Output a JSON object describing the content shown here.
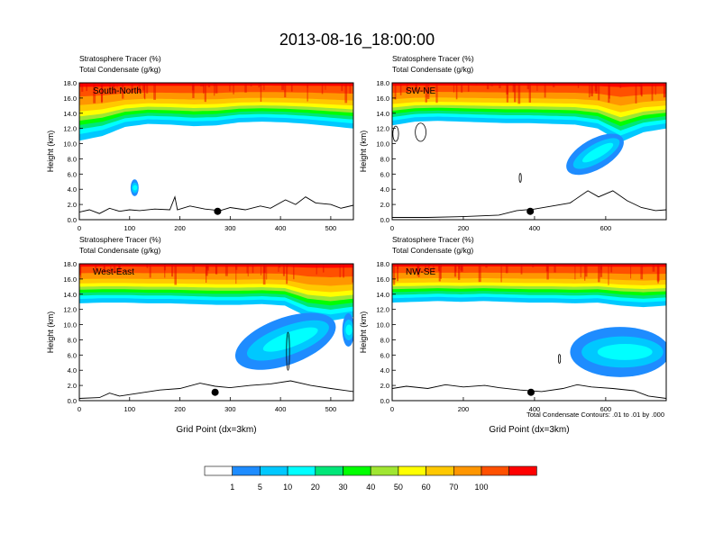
{
  "figure": {
    "title": "2013-08-16_18:00:00",
    "footnote": "Total Condensate Contours: .01 to .01 by .000"
  },
  "colors": {
    "levels": [
      "#ffffff",
      "#1e8cff",
      "#00c8ff",
      "#00ffff",
      "#00e678",
      "#00ff00",
      "#a0e632",
      "#ffff00",
      "#ffc800",
      "#ff9600",
      "#ff5000",
      "#ff0000"
    ]
  },
  "colorbar": {
    "labels": [
      "1",
      "5",
      "10",
      "20",
      "30",
      "40",
      "50",
      "60",
      "70",
      "100"
    ]
  },
  "chart_data": [
    {
      "type": "heatmap",
      "panel_label": "South-North",
      "subtitle_1": "Stratosphere Tracer   (%)",
      "subtitle_2": "Total Condensate   (g/kg)",
      "ylabel": "Height (km)",
      "xlabel": "",
      "xlim": [
        0,
        545
      ],
      "ylim": [
        0,
        18
      ],
      "xticks": [
        0,
        100,
        200,
        300,
        400,
        500
      ],
      "yticks": [
        "0.0",
        "2.0",
        "4.0",
        "6.0",
        "8.0",
        "10.0",
        "12.0",
        "14.0",
        "16.0",
        "18.0"
      ],
      "tracer_band_base_km": [
        10.4,
        11.0,
        12.2,
        12.6,
        12.5,
        12.3,
        12.4,
        12.8,
        12.9,
        12.8,
        12.6,
        12.3,
        12.0
      ],
      "condensate_blobs": [
        {
          "x": 110,
          "y": 4.2,
          "rx": 8,
          "ry": 0.5
        }
      ],
      "terrain_km": [
        [
          0,
          1.0
        ],
        [
          20,
          1.3
        ],
        [
          40,
          0.8
        ],
        [
          60,
          1.5
        ],
        [
          80,
          1.1
        ],
        [
          100,
          1.3
        ],
        [
          120,
          1.2
        ],
        [
          150,
          1.4
        ],
        [
          180,
          1.3
        ],
        [
          190,
          3.0
        ],
        [
          195,
          1.3
        ],
        [
          220,
          1.8
        ],
        [
          250,
          1.4
        ],
        [
          280,
          1.2
        ],
        [
          300,
          1.6
        ],
        [
          330,
          1.3
        ],
        [
          360,
          1.8
        ],
        [
          380,
          1.5
        ],
        [
          410,
          2.6
        ],
        [
          430,
          2.0
        ],
        [
          450,
          3.0
        ],
        [
          470,
          2.2
        ],
        [
          500,
          2.0
        ],
        [
          520,
          1.5
        ],
        [
          545,
          1.9
        ]
      ],
      "marker": [
        275,
        1.1
      ]
    },
    {
      "type": "heatmap",
      "panel_label": "SW-NE",
      "subtitle_1": "Stratosphere Tracer   (%)",
      "subtitle_2": "Total Condensate   (g/kg)",
      "ylabel": "Height (km)",
      "xlabel": "",
      "xlim": [
        0,
        770
      ],
      "ylim": [
        0,
        18
      ],
      "xticks": [
        0,
        200,
        400,
        600
      ],
      "yticks": [
        "0.0",
        "2.0",
        "4.0",
        "6.0",
        "8.0",
        "10.0",
        "12.0",
        "14.0",
        "16.0",
        "18.0"
      ],
      "tracer_band_base_km": [
        12.4,
        12.9,
        13.0,
        12.9,
        12.8,
        12.7,
        12.7,
        12.6,
        12.5,
        12.0,
        10.2,
        11.5,
        12.0
      ],
      "condensate_blobs": [
        {
          "x": 570,
          "y": 8.6,
          "rx": 90,
          "ry": 0.9,
          "angle": -30
        }
      ],
      "contour_loops": [
        {
          "x": 80,
          "y": 11.5,
          "rx": 15,
          "ry": 1.2
        },
        {
          "x": 10,
          "y": 11.3,
          "rx": 8,
          "ry": 1.0
        },
        {
          "x": 360,
          "y": 5.5,
          "rx": 3,
          "ry": 0.6
        }
      ],
      "terrain_km": [
        [
          0,
          0.3
        ],
        [
          100,
          0.3
        ],
        [
          200,
          0.4
        ],
        [
          300,
          0.6
        ],
        [
          350,
          1.2
        ],
        [
          400,
          1.4
        ],
        [
          450,
          1.8
        ],
        [
          500,
          2.2
        ],
        [
          550,
          3.8
        ],
        [
          580,
          3.0
        ],
        [
          620,
          3.8
        ],
        [
          660,
          2.5
        ],
        [
          700,
          1.6
        ],
        [
          740,
          1.2
        ],
        [
          770,
          1.3
        ]
      ],
      "marker": [
        388,
        1.1
      ]
    },
    {
      "type": "heatmap",
      "panel_label": "West-East",
      "subtitle_1": "Stratosphere Tracer   (%)",
      "subtitle_2": "Total Condensate   (g/kg)",
      "ylabel": "Height (km)",
      "xlabel": "Grid Point (dx=3km)",
      "xlim": [
        0,
        545
      ],
      "ylim": [
        0,
        18
      ],
      "xticks": [
        0,
        100,
        200,
        300,
        400,
        500
      ],
      "yticks": [
        "0.0",
        "2.0",
        "4.0",
        "6.0",
        "8.0",
        "10.0",
        "12.0",
        "14.0",
        "16.0",
        "18.0"
      ],
      "tracer_band_base_km": [
        12.8,
        12.9,
        12.9,
        12.8,
        12.8,
        12.7,
        12.6,
        12.6,
        12.7,
        12.5,
        11.0,
        10.5,
        11.0
      ],
      "condensate_blobs": [
        {
          "x": 410,
          "y": 7.8,
          "rx": 105,
          "ry": 1.4,
          "angle": -20
        },
        {
          "x": 535,
          "y": 9.3,
          "rx": 12,
          "ry": 1.0
        }
      ],
      "contour_loops": [
        {
          "x": 415,
          "y": 6.5,
          "rx": 3,
          "ry": 2.5
        }
      ],
      "terrain_km": [
        [
          0,
          0.3
        ],
        [
          40,
          0.4
        ],
        [
          60,
          1.0
        ],
        [
          80,
          0.6
        ],
        [
          120,
          1.0
        ],
        [
          160,
          1.4
        ],
        [
          200,
          1.6
        ],
        [
          240,
          2.3
        ],
        [
          270,
          1.9
        ],
        [
          300,
          1.7
        ],
        [
          340,
          2.0
        ],
        [
          380,
          2.2
        ],
        [
          420,
          2.6
        ],
        [
          460,
          2.0
        ],
        [
          500,
          1.6
        ],
        [
          545,
          1.2
        ]
      ],
      "marker": [
        270,
        1.1
      ]
    },
    {
      "type": "heatmap",
      "panel_label": "NW-SE",
      "subtitle_1": "Stratosphere Tracer   (%)",
      "subtitle_2": "Total Condensate   (g/kg)",
      "ylabel": "Height (km)",
      "xlabel": "Grid Point (dx=3km)",
      "xlim": [
        0,
        770
      ],
      "ylim": [
        0,
        18
      ],
      "xticks": [
        0,
        200,
        400,
        600
      ],
      "yticks": [
        "0.0",
        "2.0",
        "4.0",
        "6.0",
        "8.0",
        "10.0",
        "12.0",
        "14.0",
        "16.0",
        "18.0"
      ],
      "tracer_band_base_km": [
        12.9,
        13.0,
        13.1,
        13.0,
        13.1,
        13.0,
        12.9,
        12.9,
        12.8,
        12.9,
        12.5,
        12.3,
        12.5
      ],
      "condensate_blobs": [
        {
          "x": 640,
          "y": 6.4,
          "rx": 140,
          "ry": 1.5
        }
      ],
      "contour_loops": [
        {
          "x": 470,
          "y": 5.5,
          "rx": 3,
          "ry": 0.6
        }
      ],
      "terrain_km": [
        [
          0,
          1.6
        ],
        [
          40,
          1.9
        ],
        [
          100,
          1.6
        ],
        [
          150,
          2.1
        ],
        [
          200,
          1.8
        ],
        [
          260,
          2.0
        ],
        [
          300,
          1.7
        ],
        [
          360,
          1.4
        ],
        [
          420,
          1.2
        ],
        [
          480,
          1.6
        ],
        [
          520,
          2.1
        ],
        [
          560,
          1.8
        ],
        [
          620,
          1.6
        ],
        [
          680,
          1.3
        ],
        [
          720,
          0.6
        ],
        [
          770,
          0.3
        ]
      ],
      "marker": [
        390,
        1.1
      ]
    }
  ]
}
